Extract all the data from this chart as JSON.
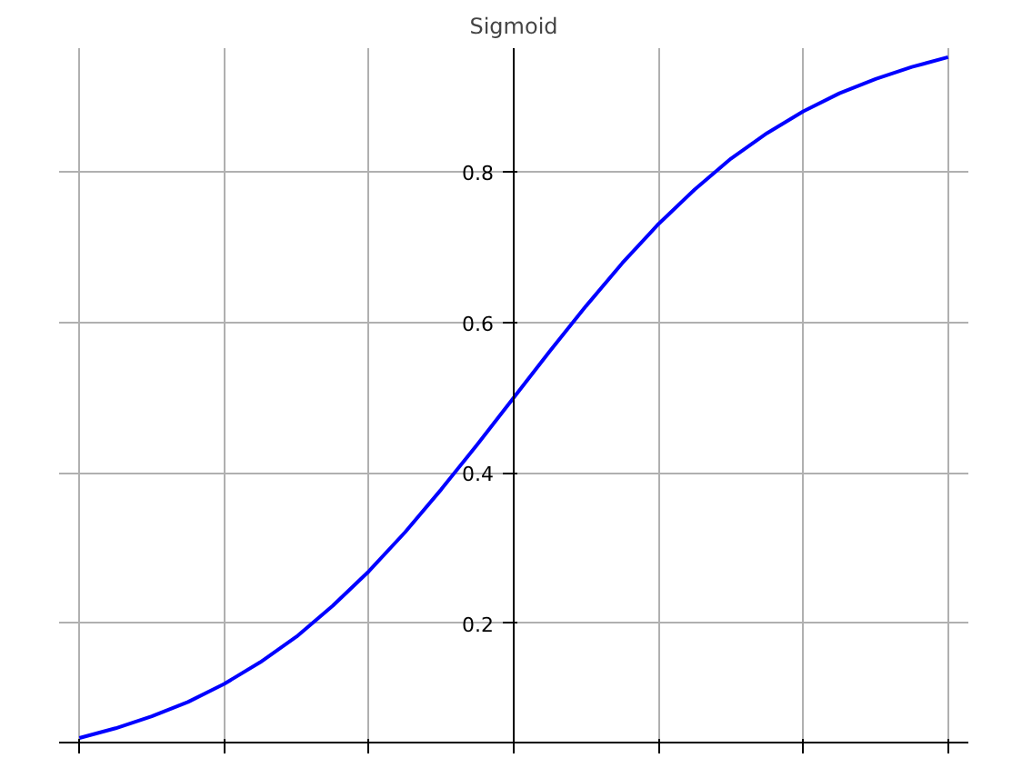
{
  "chart_data": {
    "type": "line",
    "title": "Sigmoid",
    "categories": [
      null,
      null,
      null,
      null,
      null,
      null,
      null,
      null,
      null,
      null,
      null,
      null,
      null,
      null,
      null,
      null,
      null,
      null,
      null,
      null,
      null,
      null,
      null,
      null,
      null
    ],
    "series": [
      {
        "color": "#0000ff",
        "values": [
          0.047,
          0.06,
          0.076,
          0.095,
          0.119,
          0.148,
          0.182,
          0.223,
          0.269,
          0.321,
          0.378,
          0.438,
          0.5,
          0.562,
          0.622,
          0.679,
          0.731,
          0.777,
          0.818,
          0.852,
          0.881,
          0.905,
          0.924,
          0.94,
          0.953
        ]
      }
    ],
    "ylim": [
      0.041,
      0.965
    ],
    "yticks": [
      0.2,
      0.4,
      0.6,
      0.8
    ],
    "tick_labels": "y",
    "grid": true,
    "line_style": "solid",
    "marker": "none"
  }
}
